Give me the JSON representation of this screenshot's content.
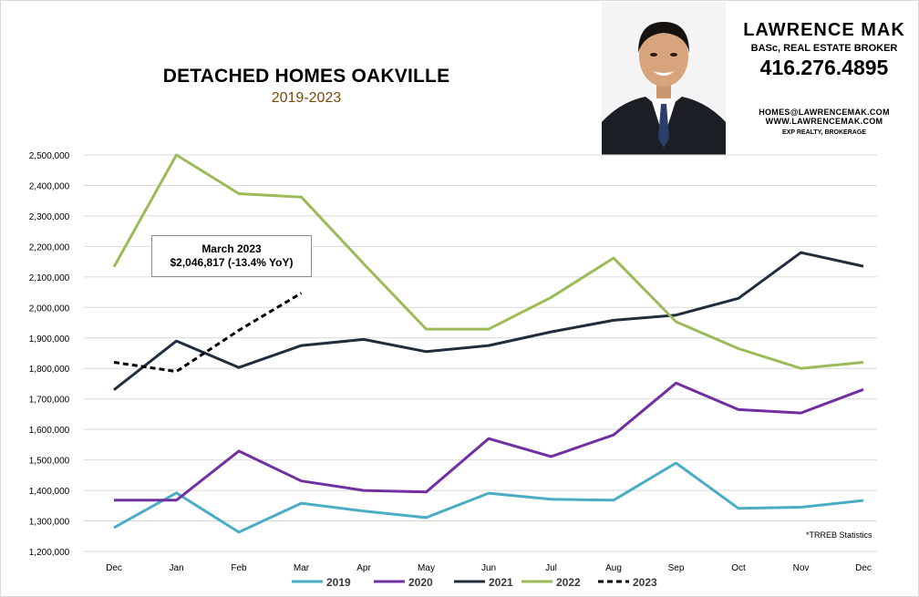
{
  "header": {
    "title": "DETACHED HOMES OAKVILLE",
    "subtitle": "2019-2023"
  },
  "agent": {
    "name": "LAWRENCE MAK",
    "credentials": "BASc, REAL ESTATE BROKER",
    "phone": "416.276.4895",
    "email": "HOMES@LAWRENCEMAK.COM",
    "website": "WWW.LAWRENCEMAK.COM",
    "brokerage": "EXP REALTY, BROKERAGE"
  },
  "source_note": "*TRREB Statistics",
  "annotation": {
    "line1": "March 2023",
    "line2": "$2,046,817  (-13.4%  YoY)"
  },
  "chart_data": {
    "type": "line",
    "title": "DETACHED HOMES OAKVILLE",
    "subtitle": "2019-2023",
    "xlabel": "",
    "ylabel": "",
    "categories": [
      "Dec",
      "Jan",
      "Feb",
      "Mar",
      "Apr",
      "May",
      "Jun",
      "Jul",
      "Aug",
      "Sep",
      "Oct",
      "Nov",
      "Dec"
    ],
    "ylim": [
      1200000,
      2500000
    ],
    "yticks": [
      1200000,
      1300000,
      1400000,
      1500000,
      1600000,
      1700000,
      1800000,
      1900000,
      2000000,
      2100000,
      2200000,
      2300000,
      2400000,
      2500000
    ],
    "ytick_labels": [
      "1,200,000",
      "1,300,000",
      "1,400,000",
      "1,500,000",
      "1,600,000",
      "1,700,000",
      "1,800,000",
      "1,900,000",
      "2,000,000",
      "2,100,000",
      "2,200,000",
      "2,300,000",
      "2,400,000",
      "2,500,000"
    ],
    "grid": true,
    "legend_position": "bottom",
    "series": [
      {
        "name": "2019",
        "color": "#4aacc5",
        "dash": false,
        "values": [
          1278000,
          1392000,
          1263000,
          1358000,
          1332000,
          1311000,
          1391000,
          1371000,
          1368000,
          1490000,
          1341000,
          1345000,
          1367000
        ]
      },
      {
        "name": "2020",
        "color": "#7030a0",
        "dash": false,
        "values": [
          1368000,
          1368000,
          1529000,
          1431000,
          1400000,
          1395000,
          1570000,
          1511000,
          1582000,
          1752000,
          1665000,
          1654000,
          1731000
        ]
      },
      {
        "name": "2021",
        "color": "#1f2d3d",
        "dash": false,
        "values": [
          1730000,
          1890000,
          1803000,
          1875000,
          1895000,
          1855000,
          1875000,
          1920000,
          1958000,
          1975000,
          2030000,
          2180000,
          2135000
        ]
      },
      {
        "name": "2022",
        "color": "#9bbb59",
        "dash": false,
        "values": [
          2133000,
          2500000,
          2373000,
          2362000,
          2143000,
          1929000,
          1929000,
          2033000,
          2162000,
          1953000,
          1865000,
          1800000,
          1820000
        ]
      },
      {
        "name": "2023",
        "color": "#000000",
        "dash": true,
        "values": [
          1820000,
          1790000,
          1925000,
          2046817,
          null,
          null,
          null,
          null,
          null,
          null,
          null,
          null,
          null
        ]
      }
    ]
  }
}
